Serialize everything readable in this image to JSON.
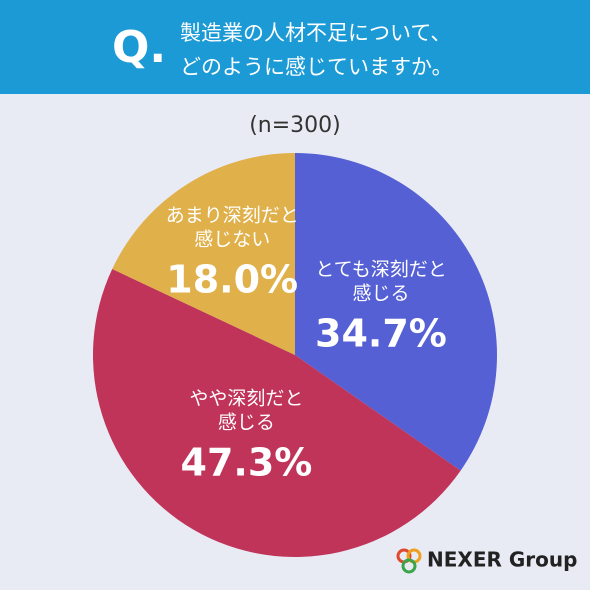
{
  "header": {
    "mark": "Q.",
    "lines": [
      "製造業の人材不足について、",
      "どのように感じていますか。"
    ]
  },
  "chart_data": {
    "type": "pie",
    "subtitle": "(n=300)",
    "categories": [
      [
        "とても深刻だと",
        "感じる"
      ],
      [
        "やや深刻だと",
        "感じる"
      ],
      [
        "あまり深刻だと",
        "感じない"
      ]
    ],
    "values": [
      34.7,
      47.3,
      18.0
    ],
    "value_labels": [
      "34.7%",
      "47.3%",
      "18.0%"
    ],
    "colors": [
      "#5560d4",
      "#c0345a",
      "#e0b04a"
    ]
  },
  "logo": "NEXER Group"
}
